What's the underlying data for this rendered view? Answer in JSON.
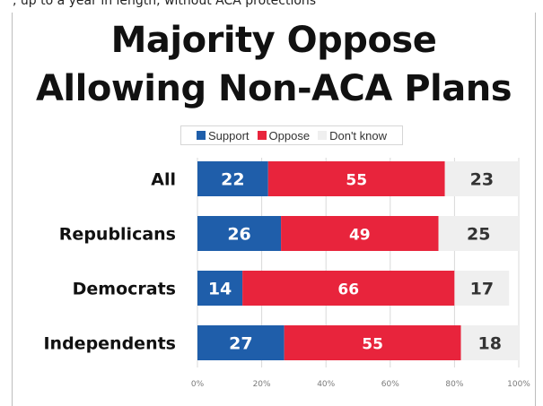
{
  "colors": {
    "support": "#1f5eaa",
    "oppose": "#e8243c",
    "dont_know": "#efefef",
    "gridline": "#d9d9d9"
  },
  "chart_data": {
    "type": "bar",
    "stacked": true,
    "orientation": "horizontal",
    "title": "Majority Oppose Allowing Non-ACA Plans",
    "title_lines": [
      "Majority Oppose",
      "Allowing Non-ACA Plans"
    ],
    "categories": [
      "All",
      "Republicans",
      "Democrats",
      "Independents"
    ],
    "series": [
      {
        "name": "Support",
        "values": [
          22,
          26,
          14,
          27
        ]
      },
      {
        "name": "Oppose",
        "values": [
          55,
          49,
          66,
          55
        ]
      },
      {
        "name": "Don't know",
        "values": [
          23,
          25,
          17,
          18
        ]
      }
    ],
    "xlim": [
      0,
      100
    ],
    "xticks": [
      "0%",
      "20%",
      "40%",
      "60%",
      "80%",
      "100%"
    ],
    "legend_position": "top",
    "grid": true
  }
}
